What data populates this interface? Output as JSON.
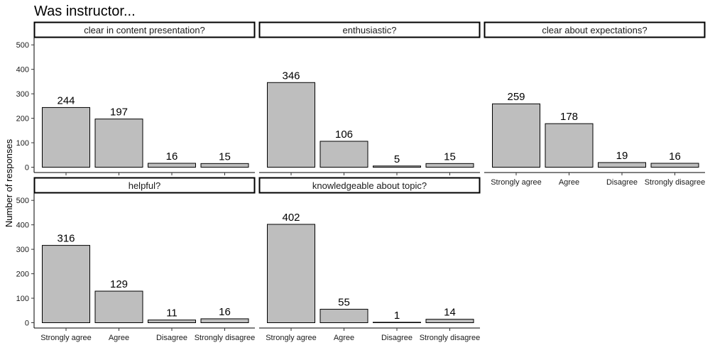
{
  "chart_data": {
    "type": "bar",
    "title": "Was instructor...",
    "ylabel": "Number of responses",
    "xlabel": "",
    "categories": [
      "Strongly agree",
      "Agree",
      "Disagree",
      "Strongly disagree"
    ],
    "ylim": [
      0,
      520
    ],
    "yticks": [
      0,
      100,
      200,
      300,
      400,
      500
    ],
    "bar_color": "#bebebe",
    "bar_edge_color": "#000000",
    "grid": false,
    "panels": [
      {
        "label": "clear in content presentation?",
        "values": [
          244,
          197,
          16,
          15
        ]
      },
      {
        "label": "enthusiastic?",
        "values": [
          346,
          106,
          5,
          15
        ]
      },
      {
        "label": "clear about expectations?",
        "values": [
          259,
          178,
          19,
          16
        ]
      },
      {
        "label": "helpful?",
        "values": [
          316,
          129,
          11,
          16
        ]
      },
      {
        "label": "knowledgeable about topic?",
        "values": [
          402,
          55,
          1,
          14
        ]
      }
    ]
  }
}
